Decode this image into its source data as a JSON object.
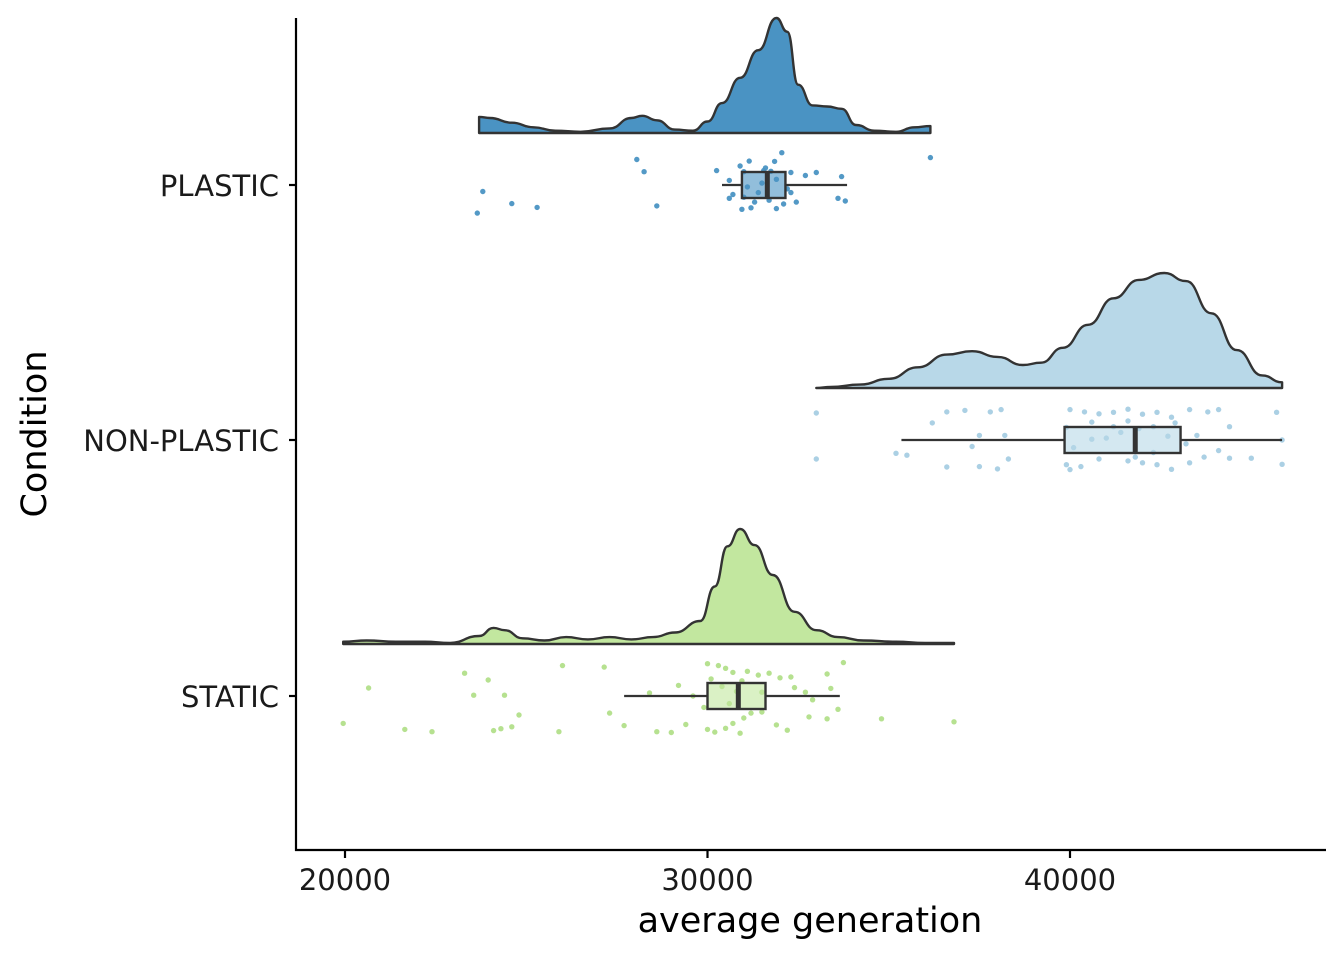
{
  "chart_data": {
    "type": "raincloud",
    "xlabel": "average generation",
    "ylabel": "Condition",
    "xlim": [
      19900,
      46300
    ],
    "xticks": [
      20000,
      30000,
      40000
    ],
    "xtick_labels": [
      "20000",
      "30000",
      "40000"
    ],
    "grid": false,
    "legend": "none",
    "series": [
      {
        "name": "PLASTIC",
        "color": "#4a93c3",
        "fill": "#4a93c3",
        "box": {
          "min": 30400,
          "q1": 30950,
          "median": 31650,
          "q3": 32150,
          "max": 33850
        },
        "density": [
          [
            23700,
            0.14
          ],
          [
            24000,
            0.13
          ],
          [
            24600,
            0.09
          ],
          [
            25200,
            0.05
          ],
          [
            25800,
            0.02
          ],
          [
            26500,
            0.01
          ],
          [
            27300,
            0.04
          ],
          [
            27900,
            0.13
          ],
          [
            28200,
            0.15
          ],
          [
            28600,
            0.11
          ],
          [
            29100,
            0.03
          ],
          [
            29600,
            0.02
          ],
          [
            30000,
            0.1
          ],
          [
            30400,
            0.26
          ],
          [
            30900,
            0.48
          ],
          [
            31400,
            0.72
          ],
          [
            31900,
            1.0
          ],
          [
            32200,
            0.88
          ],
          [
            32500,
            0.42
          ],
          [
            32900,
            0.24
          ],
          [
            33300,
            0.23
          ],
          [
            33700,
            0.21
          ],
          [
            34100,
            0.07
          ],
          [
            34600,
            0.02
          ],
          [
            35200,
            0.01
          ],
          [
            35700,
            0.05
          ],
          [
            36150,
            0.06
          ]
        ],
        "points": [
          [
            28050,
            0.67
          ],
          [
            28250,
            0.35
          ],
          [
            30250,
            0.38
          ],
          [
            30900,
            0.5
          ],
          [
            31150,
            0.63
          ],
          [
            31550,
            0.38
          ],
          [
            31750,
            0.36
          ],
          [
            31850,
            0.62
          ],
          [
            32050,
            0.85
          ],
          [
            32300,
            0.33
          ],
          [
            32700,
            0.25
          ],
          [
            33000,
            0.33
          ],
          [
            33700,
            0.22
          ],
          [
            36150,
            0.72
          ],
          [
            30600,
            0.12
          ],
          [
            31100,
            -0.05
          ],
          [
            31500,
            0.05
          ],
          [
            31900,
            0.15
          ],
          [
            32200,
            -0.1
          ],
          [
            30700,
            -0.25
          ],
          [
            31000,
            -0.32
          ],
          [
            31300,
            -0.45
          ],
          [
            31700,
            -0.4
          ],
          [
            32100,
            -0.5
          ],
          [
            32300,
            -0.2
          ],
          [
            32450,
            -0.45
          ],
          [
            31200,
            -0.6
          ],
          [
            31900,
            -0.62
          ],
          [
            33600,
            -0.35
          ],
          [
            33800,
            -0.42
          ],
          [
            30950,
            -0.64
          ],
          [
            23800,
            -0.17
          ],
          [
            24600,
            -0.49
          ],
          [
            25300,
            -0.59
          ],
          [
            23650,
            -0.74
          ],
          [
            28600,
            -0.55
          ],
          [
            30600,
            -0.35
          ],
          [
            31400,
            -0.2
          ],
          [
            31600,
            0.45
          ],
          [
            31000,
            0.35
          ]
        ]
      },
      {
        "name": "NON-PLASTIC",
        "color": "#a6cee3",
        "fill": "#b8d8e8",
        "box": {
          "min": 35350,
          "q1": 39850,
          "median": 41800,
          "q3": 43050,
          "max": 45850
        },
        "density": [
          [
            33000,
            0.0
          ],
          [
            33400,
            0.01
          ],
          [
            34200,
            0.03
          ],
          [
            35000,
            0.08
          ],
          [
            35800,
            0.18
          ],
          [
            36600,
            0.29
          ],
          [
            37300,
            0.32
          ],
          [
            38000,
            0.27
          ],
          [
            38700,
            0.2
          ],
          [
            39200,
            0.22
          ],
          [
            39800,
            0.35
          ],
          [
            40500,
            0.55
          ],
          [
            41200,
            0.78
          ],
          [
            41900,
            0.94
          ],
          [
            42600,
            1.0
          ],
          [
            43200,
            0.93
          ],
          [
            43900,
            0.65
          ],
          [
            44600,
            0.33
          ],
          [
            45300,
            0.11
          ],
          [
            45850,
            0.05
          ]
        ],
        "points": [
          [
            33000,
            0.71
          ],
          [
            33000,
            -0.5
          ],
          [
            35500,
            -0.4
          ],
          [
            36200,
            0.45
          ],
          [
            36600,
            0.74
          ],
          [
            37100,
            0.78
          ],
          [
            37500,
            0.12
          ],
          [
            37800,
            0.74
          ],
          [
            38100,
            0.8
          ],
          [
            38200,
            0.12
          ],
          [
            38300,
            -0.5
          ],
          [
            36600,
            -0.71
          ],
          [
            37500,
            -0.7
          ],
          [
            38000,
            -0.76
          ],
          [
            35200,
            -0.35
          ],
          [
            37300,
            -0.17
          ],
          [
            40000,
            0.8
          ],
          [
            40400,
            0.74
          ],
          [
            40800,
            0.69
          ],
          [
            41200,
            0.73
          ],
          [
            41600,
            0.81
          ],
          [
            42000,
            0.68
          ],
          [
            42400,
            0.73
          ],
          [
            42800,
            0.6
          ],
          [
            43300,
            0.8
          ],
          [
            43800,
            0.74
          ],
          [
            44100,
            0.8
          ],
          [
            45700,
            0.73
          ],
          [
            45850,
            0.0
          ],
          [
            45850,
            -0.64
          ],
          [
            44400,
            -0.48
          ],
          [
            44100,
            -0.28
          ],
          [
            43700,
            -0.45
          ],
          [
            43300,
            -0.6
          ],
          [
            42800,
            -0.77
          ],
          [
            42400,
            -0.65
          ],
          [
            42000,
            -0.6
          ],
          [
            41600,
            -0.55
          ],
          [
            40800,
            -0.5
          ],
          [
            40300,
            -0.7
          ],
          [
            40000,
            -0.78
          ],
          [
            39900,
            -0.65
          ],
          [
            40100,
            -0.2
          ],
          [
            40600,
            0.02
          ],
          [
            41000,
            0.05
          ],
          [
            41400,
            0.2
          ],
          [
            41900,
            0.3
          ],
          [
            42300,
            0.35
          ],
          [
            42700,
            0.1
          ],
          [
            43200,
            -0.1
          ],
          [
            43500,
            0.12
          ],
          [
            42900,
            0.45
          ],
          [
            41600,
            0.5
          ],
          [
            39900,
            0.33
          ],
          [
            44400,
            0.35
          ],
          [
            45000,
            -0.48
          ],
          [
            40600,
            0.47
          ],
          [
            41200,
            0.35
          ],
          [
            42300,
            -0.33
          ],
          [
            41800,
            -0.45
          ]
        ]
      },
      {
        "name": "STATIC",
        "color": "#b2df8a",
        "fill": "#c2e79f",
        "box": {
          "min": 27700,
          "q1": 30000,
          "median": 30850,
          "q3": 31600,
          "max": 33650
        },
        "density": [
          [
            19950,
            0.02
          ],
          [
            20600,
            0.03
          ],
          [
            21400,
            0.02
          ],
          [
            22200,
            0.02
          ],
          [
            22900,
            0.01
          ],
          [
            23700,
            0.07
          ],
          [
            24100,
            0.14
          ],
          [
            24400,
            0.12
          ],
          [
            24900,
            0.05
          ],
          [
            25500,
            0.03
          ],
          [
            26100,
            0.06
          ],
          [
            26700,
            0.04
          ],
          [
            27300,
            0.06
          ],
          [
            27900,
            0.04
          ],
          [
            28500,
            0.06
          ],
          [
            29100,
            0.1
          ],
          [
            29800,
            0.2
          ],
          [
            30200,
            0.5
          ],
          [
            30550,
            0.85
          ],
          [
            30900,
            1.0
          ],
          [
            31300,
            0.86
          ],
          [
            31800,
            0.6
          ],
          [
            32400,
            0.28
          ],
          [
            33000,
            0.12
          ],
          [
            33600,
            0.06
          ],
          [
            34300,
            0.03
          ],
          [
            35200,
            0.02
          ],
          [
            36000,
            0.01
          ],
          [
            36800,
            0.01
          ]
        ],
        "points": [
          [
            19950,
            -0.72
          ],
          [
            20650,
            0.21
          ],
          [
            21650,
            -0.88
          ],
          [
            22400,
            -0.94
          ],
          [
            23300,
            0.6
          ],
          [
            23550,
            0.02
          ],
          [
            24100,
            -0.91
          ],
          [
            24300,
            -0.86
          ],
          [
            24600,
            -0.81
          ],
          [
            24800,
            -0.5
          ],
          [
            23950,
            0.42
          ],
          [
            24400,
            0.02
          ],
          [
            26000,
            0.8
          ],
          [
            25900,
            -0.94
          ],
          [
            27150,
            0.76
          ],
          [
            27300,
            -0.45
          ],
          [
            27700,
            -0.78
          ],
          [
            28400,
            0.08
          ],
          [
            28600,
            -0.94
          ],
          [
            29000,
            -0.96
          ],
          [
            29200,
            0.28
          ],
          [
            29400,
            -0.75
          ],
          [
            30000,
            0.85
          ],
          [
            30300,
            0.8
          ],
          [
            30500,
            0.73
          ],
          [
            30700,
            0.62
          ],
          [
            30950,
            0.4
          ],
          [
            31100,
            0.65
          ],
          [
            31400,
            0.55
          ],
          [
            31700,
            0.6
          ],
          [
            32000,
            0.48
          ],
          [
            32300,
            0.5
          ],
          [
            32700,
            0.1
          ],
          [
            32900,
            -0.1
          ],
          [
            33400,
            0.2
          ],
          [
            33750,
            0.88
          ],
          [
            33300,
            0.58
          ],
          [
            33600,
            -0.35
          ],
          [
            33300,
            -0.6
          ],
          [
            32800,
            -0.55
          ],
          [
            32200,
            -0.9
          ],
          [
            31900,
            -0.76
          ],
          [
            31500,
            -0.42
          ],
          [
            31200,
            -0.45
          ],
          [
            31000,
            -0.58
          ],
          [
            30700,
            -0.72
          ],
          [
            30500,
            -0.85
          ],
          [
            30200,
            -0.95
          ],
          [
            30000,
            -0.88
          ],
          [
            30900,
            -0.98
          ],
          [
            30400,
            0.25
          ],
          [
            30800,
            0.12
          ],
          [
            29900,
            -0.3
          ],
          [
            30600,
            -0.2
          ],
          [
            34800,
            -0.6
          ],
          [
            36800,
            -0.68
          ],
          [
            32400,
            0.22
          ],
          [
            31500,
            0.1
          ],
          [
            29600,
            0.0
          ],
          [
            30100,
            0.45
          ]
        ]
      }
    ]
  }
}
